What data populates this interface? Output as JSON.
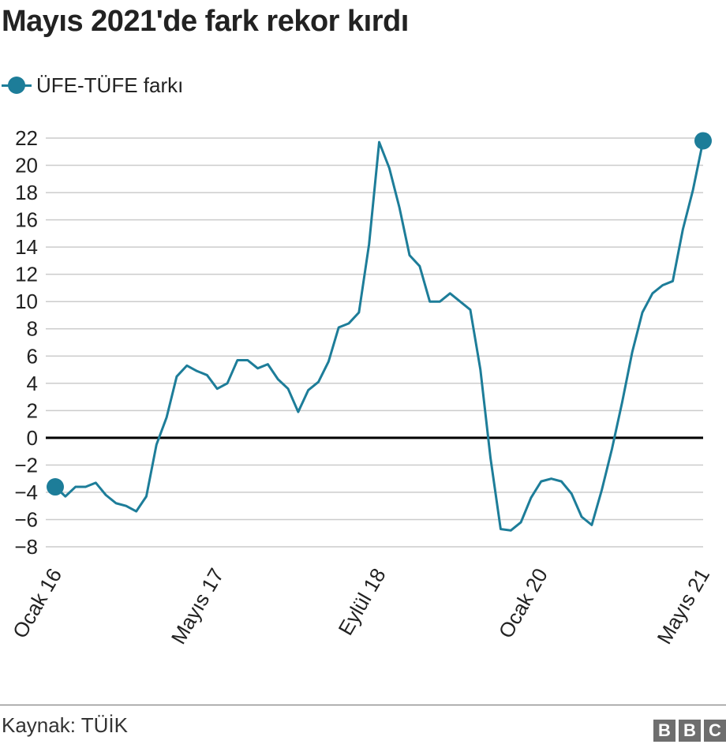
{
  "chart_data": {
    "type": "line",
    "title": "Mayıs 2021'de fark rekor kırdı",
    "xlabel": "",
    "ylabel": "",
    "x_tick_labels": [
      "Ocak 16",
      "Mayıs 17",
      "Eylül 18",
      "Ocak 20",
      "Mayıs 21"
    ],
    "x_tick_index": [
      0,
      16,
      32,
      48,
      64
    ],
    "ylim": [
      -8,
      22
    ],
    "y_ticks": [
      -8,
      -6,
      -4,
      -2,
      0,
      2,
      4,
      6,
      8,
      10,
      12,
      14,
      16,
      18,
      20,
      22
    ],
    "y_tick_labels": [
      "−8",
      "−6",
      "−4",
      "−2",
      "0",
      "2",
      "4",
      "6",
      "8",
      "10",
      "12",
      "14",
      "16",
      "18",
      "20",
      "22"
    ],
    "grid": true,
    "legend_position": "top-left",
    "series": [
      {
        "name": "ÜFE-TÜFE farkı",
        "color": "#1d7d99",
        "values": [
          -3.6,
          -4.3,
          -3.6,
          -3.6,
          -3.3,
          -4.2,
          -4.8,
          -5.0,
          -5.4,
          -4.3,
          -0.5,
          1.5,
          4.5,
          5.3,
          4.9,
          4.6,
          3.6,
          4.0,
          5.7,
          5.7,
          5.1,
          5.4,
          4.3,
          3.6,
          1.9,
          3.5,
          4.1,
          5.6,
          8.1,
          8.4,
          9.2,
          14.2,
          21.7,
          19.8,
          16.9,
          13.4,
          12.6,
          10.0,
          10.0,
          10.6,
          10.0,
          9.4,
          5.0,
          -1.5,
          -6.7,
          -6.8,
          -6.2,
          -4.4,
          -3.2,
          -3.0,
          -3.2,
          -4.1,
          -5.8,
          -6.4,
          -3.8,
          -0.8,
          2.6,
          6.3,
          9.2,
          10.6,
          11.2,
          11.5,
          15.3,
          18.2,
          21.8
        ],
        "highlight_points": [
          0,
          64
        ]
      }
    ],
    "zero_line": true
  },
  "source": "Kaynak: TÜİK",
  "logo": {
    "letters": [
      "B",
      "B",
      "C"
    ],
    "color": "#6e6e6e"
  }
}
